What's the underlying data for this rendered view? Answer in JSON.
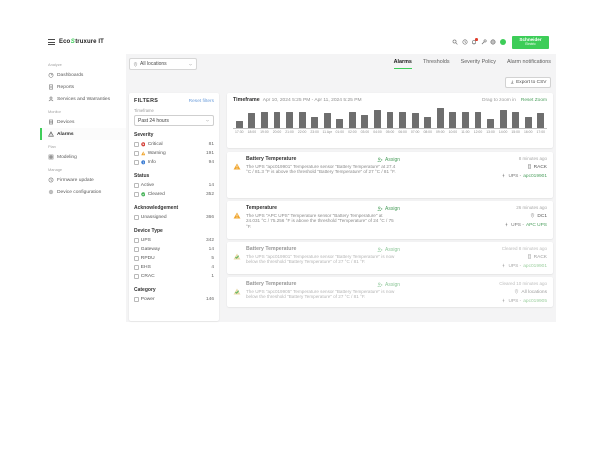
{
  "colors": {
    "accent_green": "#3dcd58",
    "link_green": "#4a9e5c",
    "reset_filters_blue": "#6d9edb",
    "critical_red": "#d23b33",
    "warning_yellow": "#f0a62f",
    "info_blue": "#3f7fd4",
    "cleared_green": "#43b155",
    "bar_gray": "#6e6e6e",
    "main_background": "#f4f4f5"
  },
  "brand": {
    "logo_pre": "Eco",
    "logo_mark": "S",
    "logo_post": "truxure IT",
    "vendor_line1": "Schneider",
    "vendor_line2": "Electric"
  },
  "header": {
    "icon_names": [
      "search-icon",
      "history-icon",
      "notifications-icon",
      "wrench-icon",
      "globe-icon",
      "avatar",
      "schneider-logo"
    ]
  },
  "sidebar": {
    "sections": [
      {
        "label": "Analyze",
        "items": [
          {
            "label": "Dashboards",
            "icon": "dashboards-icon"
          },
          {
            "label": "Reports",
            "icon": "reports-icon"
          },
          {
            "label": "Services and Warranties",
            "icon": "services-icon"
          }
        ]
      },
      {
        "label": "Monitor",
        "items": [
          {
            "label": "Devices",
            "icon": "devices-icon"
          },
          {
            "label": "Alarms",
            "icon": "alarms-icon",
            "active": true
          }
        ]
      },
      {
        "label": "Plan",
        "items": [
          {
            "label": "Modeling",
            "icon": "modeling-icon"
          }
        ]
      },
      {
        "label": "Manage",
        "items": [
          {
            "label": "Firmware update",
            "icon": "firmware-icon"
          },
          {
            "label": "Device configuration",
            "icon": "configuration-icon"
          }
        ]
      }
    ]
  },
  "topbar": {
    "location_selector": "All locations",
    "tabs": [
      {
        "label": "Alarms",
        "active": true
      },
      {
        "label": "Thresholds",
        "active": false
      },
      {
        "label": "Severity Policy",
        "active": false
      },
      {
        "label": "Alarm notifications",
        "active": false
      }
    ],
    "export_label": "Export to CSV"
  },
  "filters": {
    "title": "FILTERS",
    "reset_label": "Reset filters",
    "timeframe_label": "Timeframe",
    "timeframe_value": "Past 24 hours",
    "groups": [
      {
        "label": "Severity",
        "options": [
          {
            "label": "Critical",
            "count": "81",
            "icon": "critical-icon"
          },
          {
            "label": "Warning",
            "count": "191",
            "icon": "warning-icon"
          },
          {
            "label": "Info",
            "count": "94",
            "icon": "info-icon"
          }
        ]
      },
      {
        "label": "Status",
        "options": [
          {
            "label": "Active",
            "count": "14"
          },
          {
            "label": "Cleared",
            "count": "352",
            "icon": "cleared-icon"
          }
        ]
      },
      {
        "label": "Acknowledgement",
        "options": [
          {
            "label": "Unassigned",
            "count": "366"
          }
        ]
      },
      {
        "label": "Device Type",
        "options": [
          {
            "label": "UPS",
            "count": "342"
          },
          {
            "label": "Gateway",
            "count": "14"
          },
          {
            "label": "RPDU",
            "count": "5"
          },
          {
            "label": "EHS",
            "count": "4"
          },
          {
            "label": "CRAC",
            "count": "1"
          }
        ]
      },
      {
        "label": "Category",
        "options": [
          {
            "label": "Power",
            "count": "146"
          }
        ]
      }
    ]
  },
  "timeframe_card": {
    "label": "Timeframe",
    "range": "Apr 10, 2024 5:25 PM  -  Apr 11, 2024 5:25 PM",
    "drag_hint": "Drag to zoom in",
    "reset_zoom": "Reset Zoom"
  },
  "chart_data": {
    "type": "bar",
    "x": [
      "17:30",
      "18:00",
      "19:00",
      "20:00",
      "21:00",
      "22:00",
      "23:00",
      "11 Apr",
      "01:00",
      "02:00",
      "03:00",
      "04:00",
      "05:00",
      "06:00",
      "07:00",
      "08:00",
      "09:00",
      "10:00",
      "11:00",
      "12:00",
      "13:00",
      "14:00",
      "15:00",
      "16:00",
      "17:00"
    ],
    "values": [
      4,
      8,
      9,
      9,
      9,
      9,
      6,
      8,
      5,
      9,
      7,
      10,
      9,
      9,
      8,
      6,
      11,
      9,
      9,
      9,
      5,
      10,
      9,
      6,
      8
    ],
    "xlabel": "",
    "ylabel": "",
    "ylim": [
      0,
      12
    ],
    "grid": false,
    "legend": false,
    "bar_color": "#6e6e6e",
    "note": "Alarm count histogram per hour; no y-axis labels shown, bar heights estimated"
  },
  "alarms": [
    {
      "severity": "warning",
      "status": "active",
      "title": "Battery Temperature",
      "description": "The UPS \"apc019901\" Temperature sensor \"Battery Temperature\" at 27.4 °C / 81.3 °F is above the threshold \"Battery Temperature\" of 27 °C / 81 °F.",
      "assign_label": "Assign",
      "time": "8 minutes ago",
      "location": "RACK",
      "location_icon": "rack-icon",
      "device_type": "UPS -",
      "device_name": "apc019901"
    },
    {
      "severity": "warning",
      "status": "active",
      "title": "Temperature",
      "description": "The UPS \"APC UPS\" Temperature sensor \"Battery Temperature\" at 24.031 °C / 75.256 °F is above the threshold \"Temperature\" of 24 °C / 75 °F.",
      "assign_label": "Assign",
      "time": "26 minutes ago",
      "location": "DC1",
      "location_icon": "location-pin-icon",
      "device_type": "UPS -",
      "device_name": "APC UPS"
    },
    {
      "severity": "warning-cleared",
      "status": "cleared",
      "title": "Battery Temperature",
      "description": "The UPS \"apc019901\" Temperature sensor \"Battery Temperature\" is now below the threshold \"Battery Temperature\" of 27 °C / 81 °F.",
      "assign_label": "Assign",
      "time": "Cleared 8 minutes ago",
      "location": "RACK",
      "location_icon": "rack-icon",
      "device_type": "UPS -",
      "device_name": "apc019901"
    },
    {
      "severity": "warning-cleared",
      "status": "cleared",
      "title": "Battery Temperature",
      "description": "The UPS \"apc019905\" Temperature sensor \"Battery Temperature\" is now below the threshold \"Battery Temperature\" of 27 °C / 81 °F.",
      "assign_label": "Assign",
      "time": "Cleared 10 minutes ago",
      "location": "All locations",
      "location_icon": "location-pin-icon",
      "device_type": "UPS -",
      "device_name": "apc019905"
    }
  ]
}
